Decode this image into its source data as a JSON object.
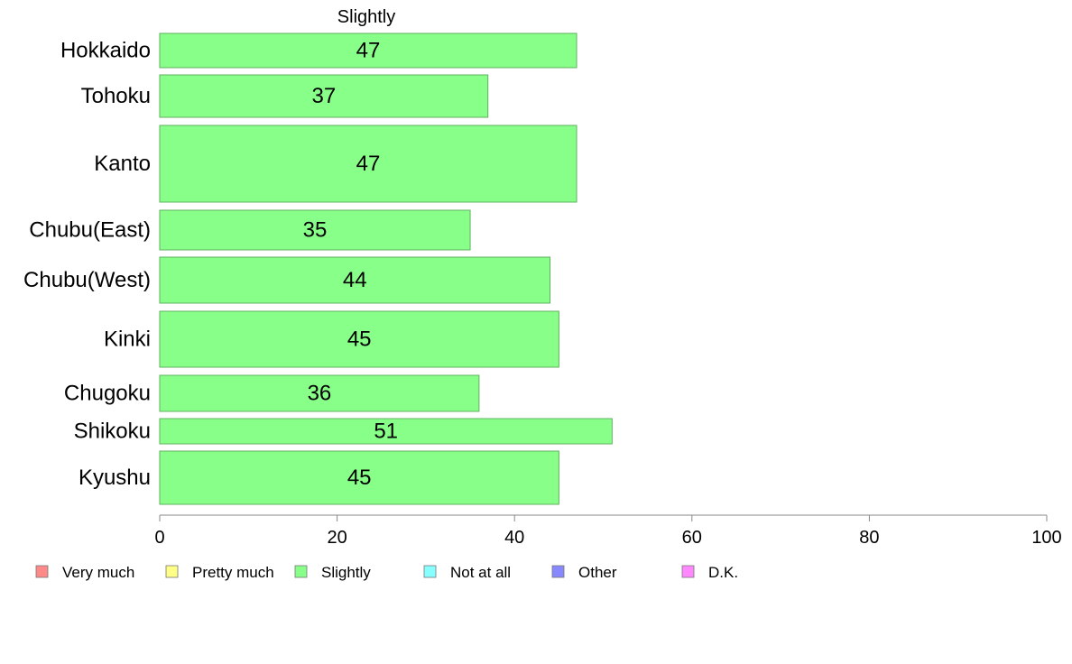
{
  "chart_data": {
    "type": "bar",
    "orientation": "horizontal",
    "title": "Slightly",
    "categories": [
      "Hokkaido",
      "Tohoku",
      "Kanto",
      "Chubu(East)",
      "Chubu(West)",
      "Kinki",
      "Chugoku",
      "Shikoku",
      "Kyushu"
    ],
    "values": [
      47,
      37,
      47,
      35,
      44,
      45,
      36,
      51,
      45
    ],
    "value_labels": [
      "47",
      "37",
      "47",
      "35",
      "44",
      "45",
      "36",
      "51",
      "45"
    ],
    "bar_color": "#88ff88",
    "xlim": [
      0,
      100
    ],
    "x_ticks": [
      0,
      20,
      40,
      60,
      80,
      100
    ],
    "x_tick_labels": [
      "0",
      "20",
      "40",
      "60",
      "80",
      "100"
    ],
    "grid": false,
    "legend_position": "bottom",
    "legend": [
      {
        "label": "Very much",
        "color": "#ff8888"
      },
      {
        "label": "Pretty much",
        "color": "#ffff88"
      },
      {
        "label": "Slightly",
        "color": "#88ff88"
      },
      {
        "label": "Not at all",
        "color": "#88ffff"
      },
      {
        "label": "Other",
        "color": "#8888ff"
      },
      {
        "label": "D.K.",
        "color": "#ff88ff"
      }
    ]
  }
}
